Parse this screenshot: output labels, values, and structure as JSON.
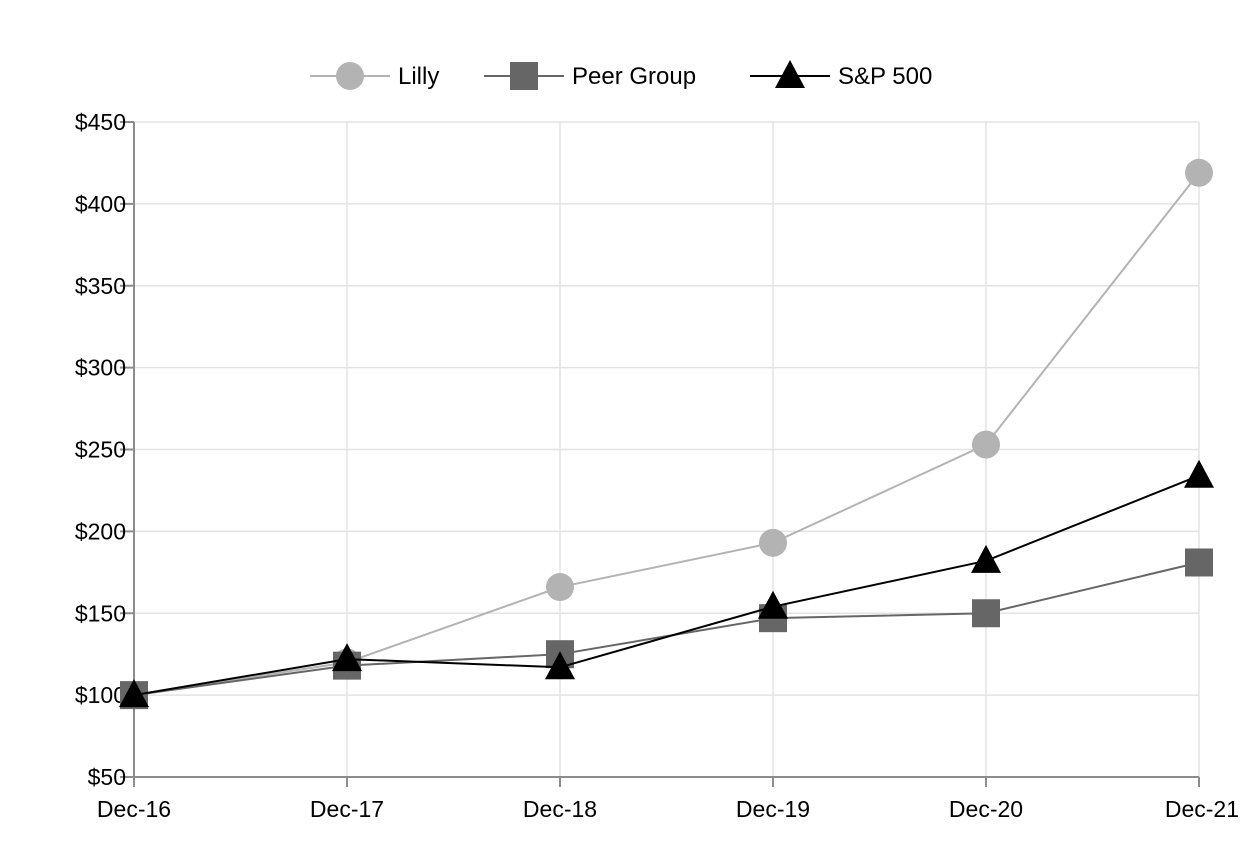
{
  "chart_data": {
    "type": "line",
    "title": "",
    "xlabel": "",
    "ylabel": "",
    "categories": [
      "Dec-16",
      "Dec-17",
      "Dec-18",
      "Dec-19",
      "Dec-20",
      "Dec-21"
    ],
    "ylim": [
      50,
      450
    ],
    "yticks": [
      50,
      100,
      150,
      200,
      250,
      300,
      350,
      400,
      450
    ],
    "ytick_labels": [
      "$50",
      "$100",
      "$150",
      "$200",
      "$250",
      "$300",
      "$350",
      "$400",
      "$450"
    ],
    "grid": true,
    "legend_position": "top-center",
    "series": [
      {
        "name": "Lilly",
        "marker": "circle",
        "color": "#b3b3b3",
        "values": [
          100,
          120,
          166,
          193,
          253,
          419
        ]
      },
      {
        "name": "Peer Group",
        "marker": "square",
        "color": "#666666",
        "values": [
          100,
          118,
          125,
          147,
          150,
          181
        ]
      },
      {
        "name": "S&P 500",
        "marker": "triangle",
        "color": "#000000",
        "values": [
          100,
          122,
          117,
          154,
          182,
          234
        ]
      }
    ]
  }
}
